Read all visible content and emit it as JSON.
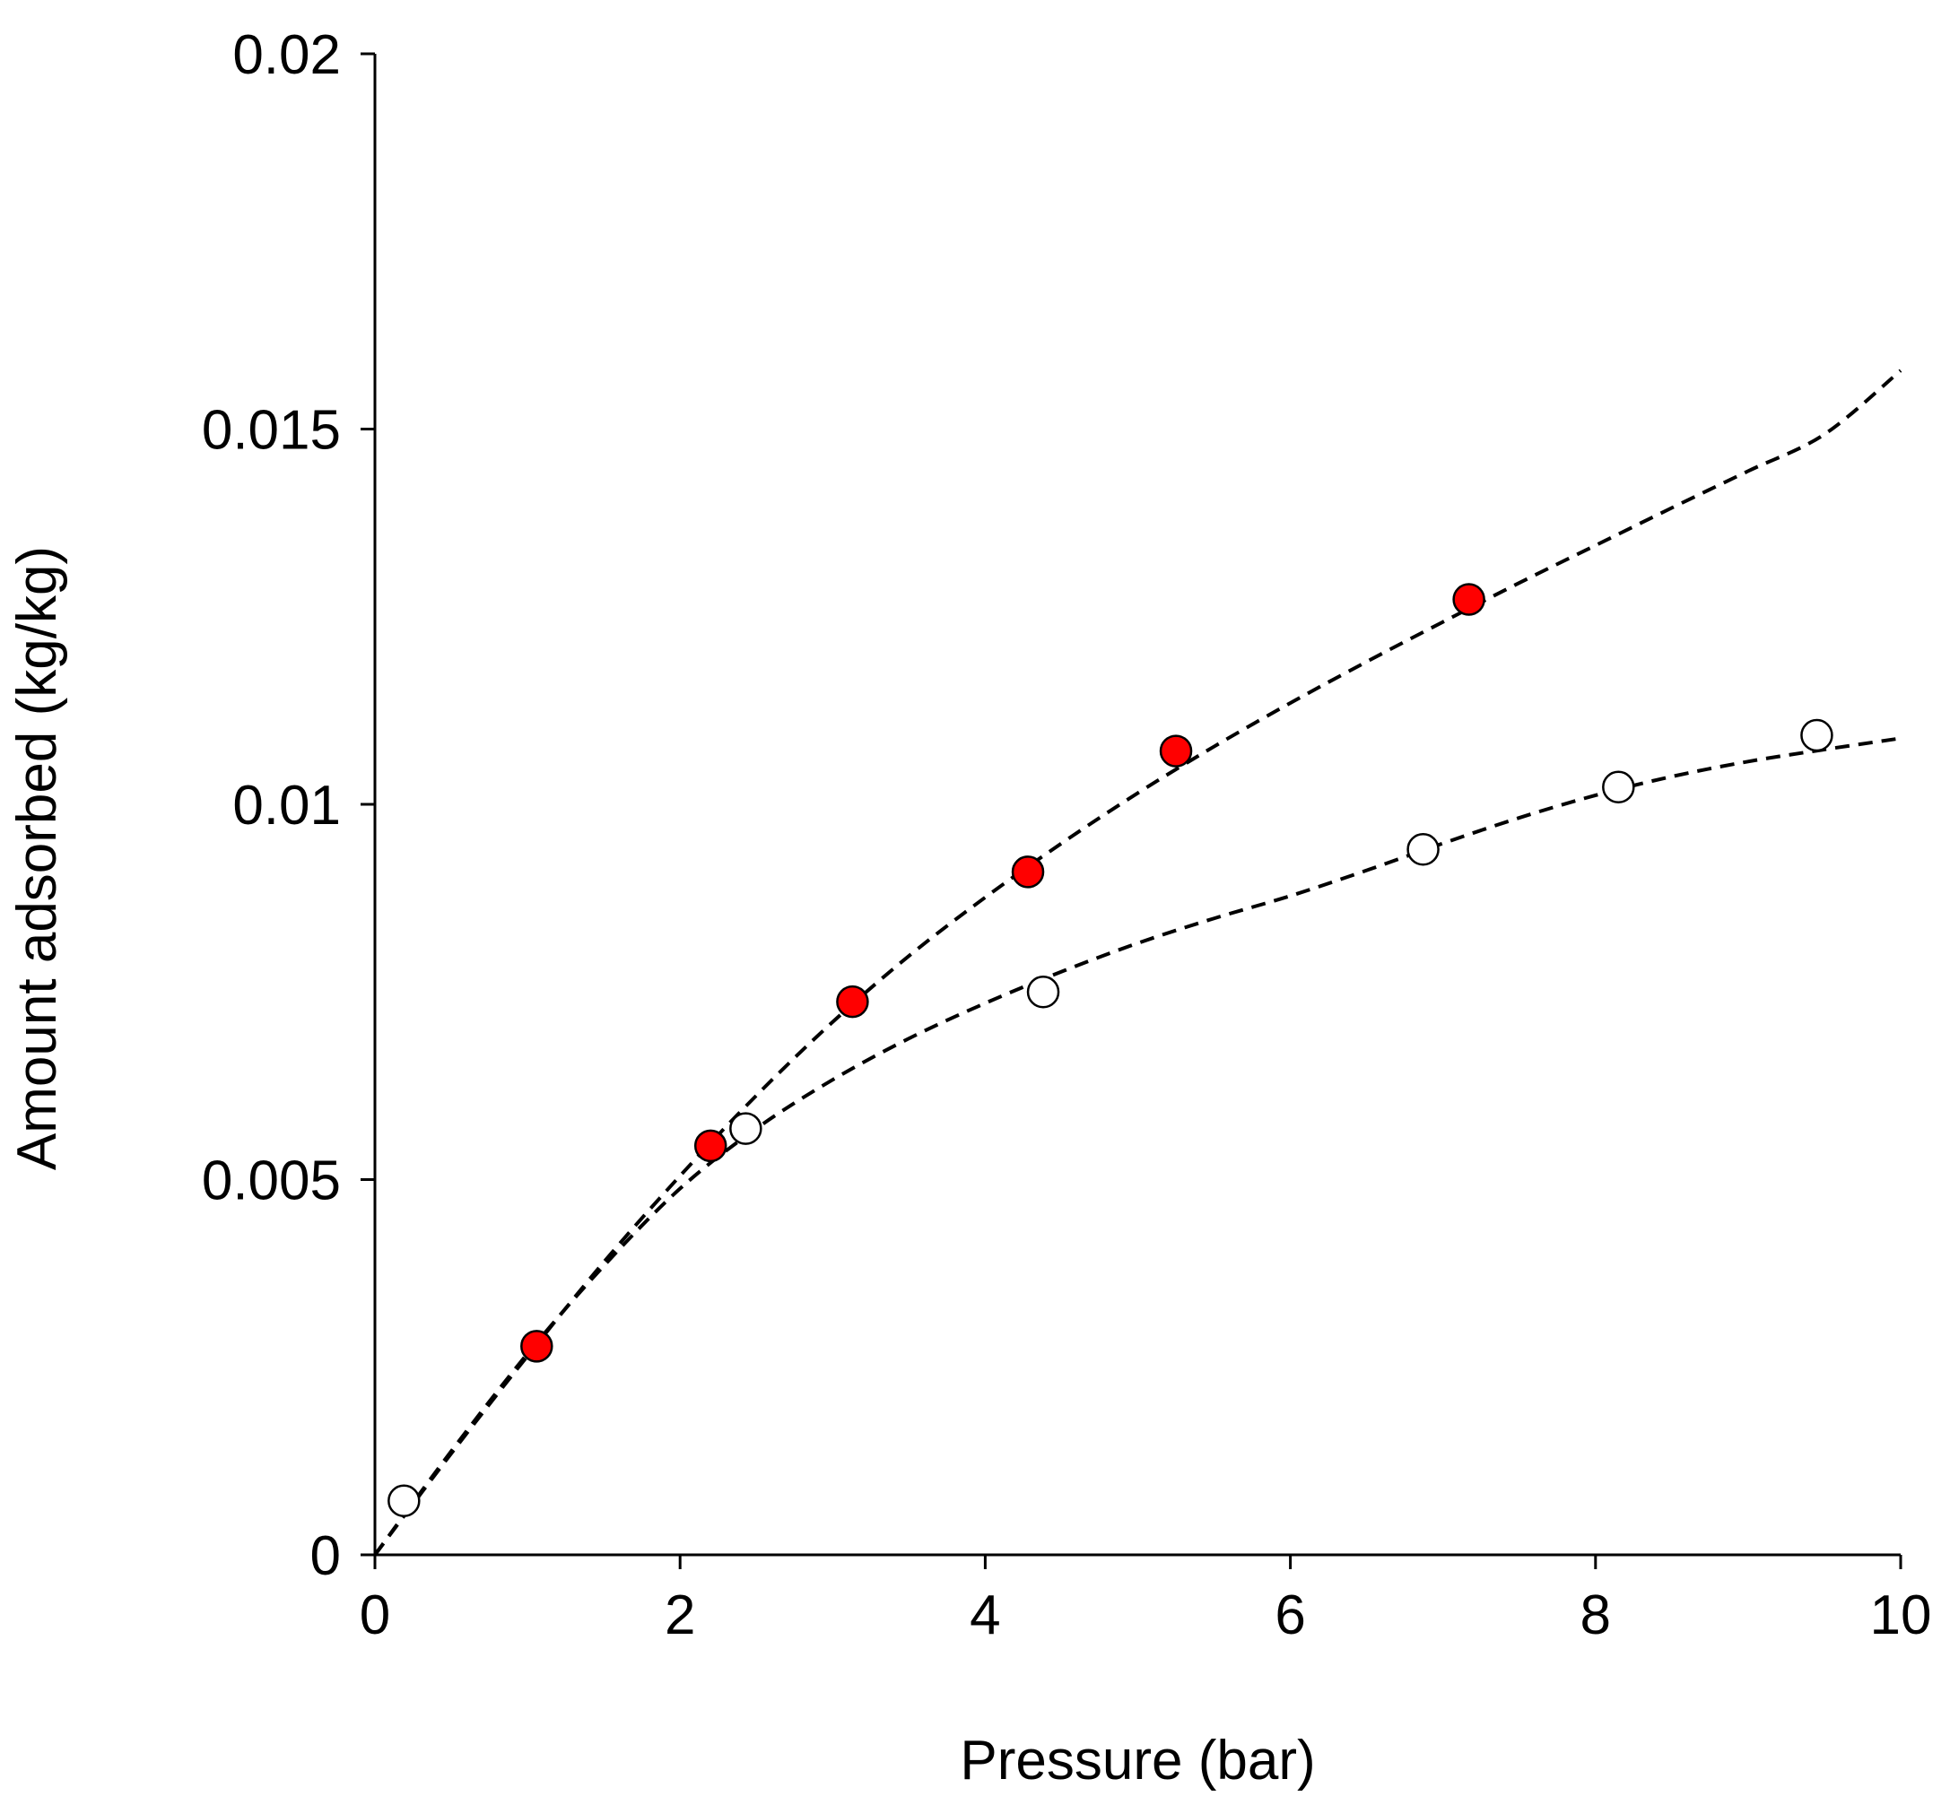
{
  "chart_data": {
    "type": "scatter",
    "title": "",
    "xlabel": "Pressure (bar)",
    "ylabel": "Amount  adsorbed (kg/kg)",
    "xlim": [
      0,
      10
    ],
    "ylim": [
      0,
      0.02
    ],
    "grid": false,
    "x_ticks": [
      {
        "value": 0,
        "label": "0"
      },
      {
        "value": 2,
        "label": "2"
      },
      {
        "value": 4,
        "label": "4"
      },
      {
        "value": 6,
        "label": "6"
      },
      {
        "value": 8,
        "label": "8"
      },
      {
        "value": 10,
        "label": "10"
      }
    ],
    "y_ticks": [
      {
        "value": 0,
        "label": "0"
      },
      {
        "value": 0.005,
        "label": "0.005"
      },
      {
        "value": 0.01,
        "label": "0.01"
      },
      {
        "value": 0.015,
        "label": "0.015"
      },
      {
        "value": 0.02,
        "label": "0.02"
      }
    ],
    "series": [
      {
        "name": "filled",
        "marker_fill": "#ff0000",
        "marker_stroke": "#000000",
        "points": [
          {
            "x": 1.06,
            "y": 0.00278
          },
          {
            "x": 2.2,
            "y": 0.00545
          },
          {
            "x": 3.13,
            "y": 0.00737
          },
          {
            "x": 4.28,
            "y": 0.0091
          },
          {
            "x": 5.25,
            "y": 0.01071
          },
          {
            "x": 7.17,
            "y": 0.01273
          }
        ],
        "fit": {
          "style": "dashed",
          "color": "#000000",
          "points": [
            {
              "x": 0,
              "y": 0
            },
            {
              "x": 0.5,
              "y": 0.00135
            },
            {
              "x": 1,
              "y": 0.00265
            },
            {
              "x": 1.5,
              "y": 0.0039
            },
            {
              "x": 2,
              "y": 0.00505
            },
            {
              "x": 2.5,
              "y": 0.00612
            },
            {
              "x": 3,
              "y": 0.0071
            },
            {
              "x": 3.5,
              "y": 0.00798
            },
            {
              "x": 4,
              "y": 0.00876
            },
            {
              "x": 4.5,
              "y": 0.00948
            },
            {
              "x": 5,
              "y": 0.01015
            },
            {
              "x": 5.5,
              "y": 0.01077
            },
            {
              "x": 6,
              "y": 0.01135
            },
            {
              "x": 6.5,
              "y": 0.0119
            },
            {
              "x": 7,
              "y": 0.01243
            },
            {
              "x": 7.5,
              "y": 0.01295
            },
            {
              "x": 8,
              "y": 0.01345
            },
            {
              "x": 8.5,
              "y": 0.01395
            },
            {
              "x": 9,
              "y": 0.01444
            },
            {
              "x": 9.5,
              "y": 0.01493
            },
            {
              "x": 10,
              "y": 0.01578
            }
          ]
        }
      },
      {
        "name": "open",
        "marker_fill": "#ffffff",
        "marker_stroke": "#000000",
        "points": [
          {
            "x": 0.19,
            "y": 0.00072
          },
          {
            "x": 2.43,
            "y": 0.00568
          },
          {
            "x": 4.38,
            "y": 0.0075
          },
          {
            "x": 6.87,
            "y": 0.0094
          },
          {
            "x": 8.15,
            "y": 0.01023
          },
          {
            "x": 9.45,
            "y": 0.01092
          }
        ],
        "fit": {
          "style": "dashed",
          "color": "#000000",
          "points": [
            {
              "x": 0,
              "y": 0
            },
            {
              "x": 0.5,
              "y": 0.00138
            },
            {
              "x": 1,
              "y": 0.00268
            },
            {
              "x": 1.5,
              "y": 0.00385
            },
            {
              "x": 2,
              "y": 0.00488
            },
            {
              "x": 2.5,
              "y": 0.00568
            },
            {
              "x": 3,
              "y": 0.00633
            },
            {
              "x": 3.5,
              "y": 0.00688
            },
            {
              "x": 4,
              "y": 0.00735
            },
            {
              "x": 4.5,
              "y": 0.00777
            },
            {
              "x": 5,
              "y": 0.00815
            },
            {
              "x": 5.5,
              "y": 0.00848
            },
            {
              "x": 6,
              "y": 0.00878
            },
            {
              "x": 6.5,
              "y": 0.00912
            },
            {
              "x": 7,
              "y": 0.00948
            },
            {
              "x": 7.5,
              "y": 0.00982
            },
            {
              "x": 8,
              "y": 0.01012
            },
            {
              "x": 8.5,
              "y": 0.01037
            },
            {
              "x": 9,
              "y": 0.01057
            },
            {
              "x": 9.5,
              "y": 0.01073
            },
            {
              "x": 10,
              "y": 0.01088
            }
          ]
        }
      }
    ]
  }
}
